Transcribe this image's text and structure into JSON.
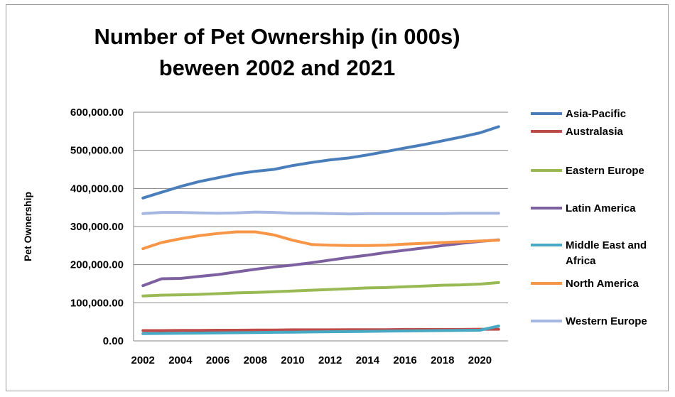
{
  "chart_data": {
    "type": "line",
    "title_line1": "Number of Pet Ownership (in 000s)",
    "title_line2": "beween 2002 and 2021",
    "ylabel": "Pet Ownership",
    "xlabel": "",
    "ylim": [
      0,
      600000
    ],
    "yticks": [
      "600,000.00",
      "500,000.00",
      "400,000.00",
      "300,000.00",
      "200,000.00",
      "100,000.00",
      "0.00"
    ],
    "xticks": [
      "2002",
      "2004",
      "2006",
      "2008",
      "2010",
      "2012",
      "2014",
      "2016",
      "2018",
      "2020"
    ],
    "grid": true,
    "legend_position": "right",
    "x": [
      2002,
      2003,
      2004,
      2005,
      2006,
      2007,
      2008,
      2009,
      2010,
      2011,
      2012,
      2013,
      2014,
      2015,
      2016,
      2017,
      2018,
      2019,
      2020,
      2021
    ],
    "series": [
      {
        "name": "Asia-Pacific",
        "color": "#4a7ebb",
        "values": [
          375000,
          390000,
          405000,
          418000,
          428000,
          438000,
          445000,
          450000,
          460000,
          468000,
          475000,
          480000,
          488000,
          497000,
          506000,
          515000,
          525000,
          535000,
          546000,
          562000
        ]
      },
      {
        "name": "Australasia",
        "color": "#be4b48",
        "values": [
          27000,
          27000,
          27500,
          27500,
          28000,
          28000,
          28500,
          28500,
          29000,
          29000,
          29000,
          29500,
          29500,
          29500,
          30000,
          30000,
          30000,
          30000,
          30500,
          30500
        ]
      },
      {
        "name": "Eastern Europe",
        "color": "#98b954",
        "values": [
          118000,
          120000,
          121000,
          122000,
          124000,
          126000,
          127000,
          129000,
          131000,
          133000,
          135000,
          137000,
          139000,
          140000,
          142000,
          144000,
          146000,
          147000,
          149000,
          153000
        ]
      },
      {
        "name": "Latin America",
        "color": "#7d60a0",
        "values": [
          145000,
          163000,
          164000,
          169000,
          174000,
          181000,
          188000,
          194000,
          199000,
          205000,
          212000,
          219000,
          225000,
          232000,
          238000,
          244000,
          250000,
          256000,
          261000,
          265000
        ]
      },
      {
        "name": "Middle East and Africa",
        "color": "#46aac5",
        "values": [
          19000,
          19500,
          20000,
          20500,
          21000,
          21500,
          22000,
          22500,
          23000,
          23500,
          24000,
          24500,
          25000,
          25500,
          26000,
          26500,
          27000,
          27500,
          28000,
          39000
        ]
      },
      {
        "name": "North America",
        "color": "#f79646",
        "values": [
          242000,
          258000,
          268000,
          276000,
          282000,
          286000,
          286000,
          278000,
          264000,
          253000,
          251000,
          250000,
          250000,
          251000,
          254000,
          256000,
          258000,
          260000,
          262000,
          264000
        ]
      },
      {
        "name": "Western Europe",
        "color": "#a5b6e0",
        "values": [
          334000,
          337000,
          337000,
          336000,
          335000,
          336000,
          338000,
          337000,
          335000,
          335000,
          334000,
          333000,
          334000,
          334000,
          334000,
          334000,
          334000,
          335000,
          335000,
          335000
        ]
      }
    ]
  }
}
